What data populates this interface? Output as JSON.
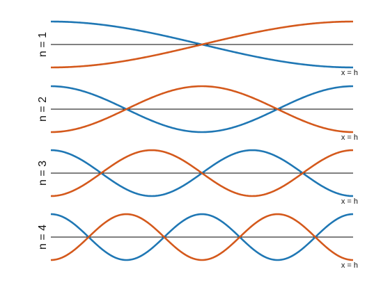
{
  "chart_data": {
    "type": "line",
    "panels": [
      {
        "label": "n = 1",
        "n": 1,
        "end_label": "x = h"
      },
      {
        "label": "n = 2",
        "n": 2,
        "end_label": "x = h"
      },
      {
        "label": "n = 3",
        "n": 3,
        "end_label": "x = h"
      },
      {
        "label": "n = 4",
        "n": 4,
        "end_label": "x = h"
      }
    ],
    "series": [
      {
        "function": "cos(n*pi*x/h)",
        "color": "#1f77b4"
      },
      {
        "function": "-cos(n*pi*x/h)",
        "color": "#d4591c"
      }
    ],
    "x_range": [
      0,
      1
    ],
    "y_range": [
      -1,
      1
    ],
    "axis_color": "#000000",
    "grid": false
  }
}
